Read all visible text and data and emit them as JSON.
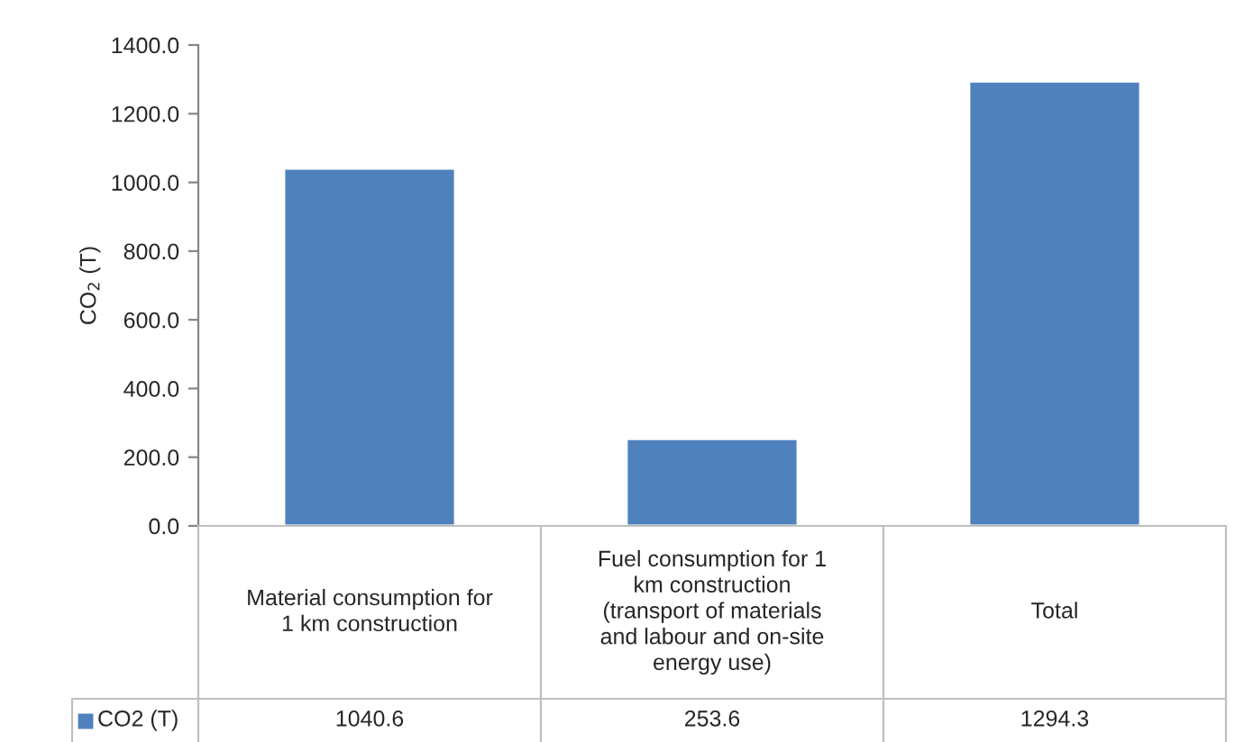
{
  "chart_data": {
    "type": "bar",
    "ylabel": "CO$_{2}$ (T)",
    "categories": [
      "Material consumption for 1 km construction",
      "Fuel consumption for 1 km construction (transport of materials and labour and on-site energy use)",
      "Total"
    ],
    "series": [
      {
        "name": "CO2 (T)",
        "color": "#4f81bd",
        "values": [
          1040.6,
          253.6,
          1294.3
        ]
      }
    ],
    "ylim": [
      0,
      1400
    ],
    "yticks": [
      {
        "value": 0,
        "label": "0.0"
      },
      {
        "value": 200,
        "label": "200.0"
      },
      {
        "value": 400,
        "label": "400.0"
      },
      {
        "value": 600,
        "label": "600.0"
      },
      {
        "value": 800,
        "label": "800.0"
      },
      {
        "value": 1000,
        "label": "1000.0"
      },
      {
        "value": 1200,
        "label": "1200.0"
      },
      {
        "value": 1400,
        "label": "1400.0"
      }
    ],
    "grid": false,
    "data_labels": true,
    "legend": "bottom left"
  }
}
